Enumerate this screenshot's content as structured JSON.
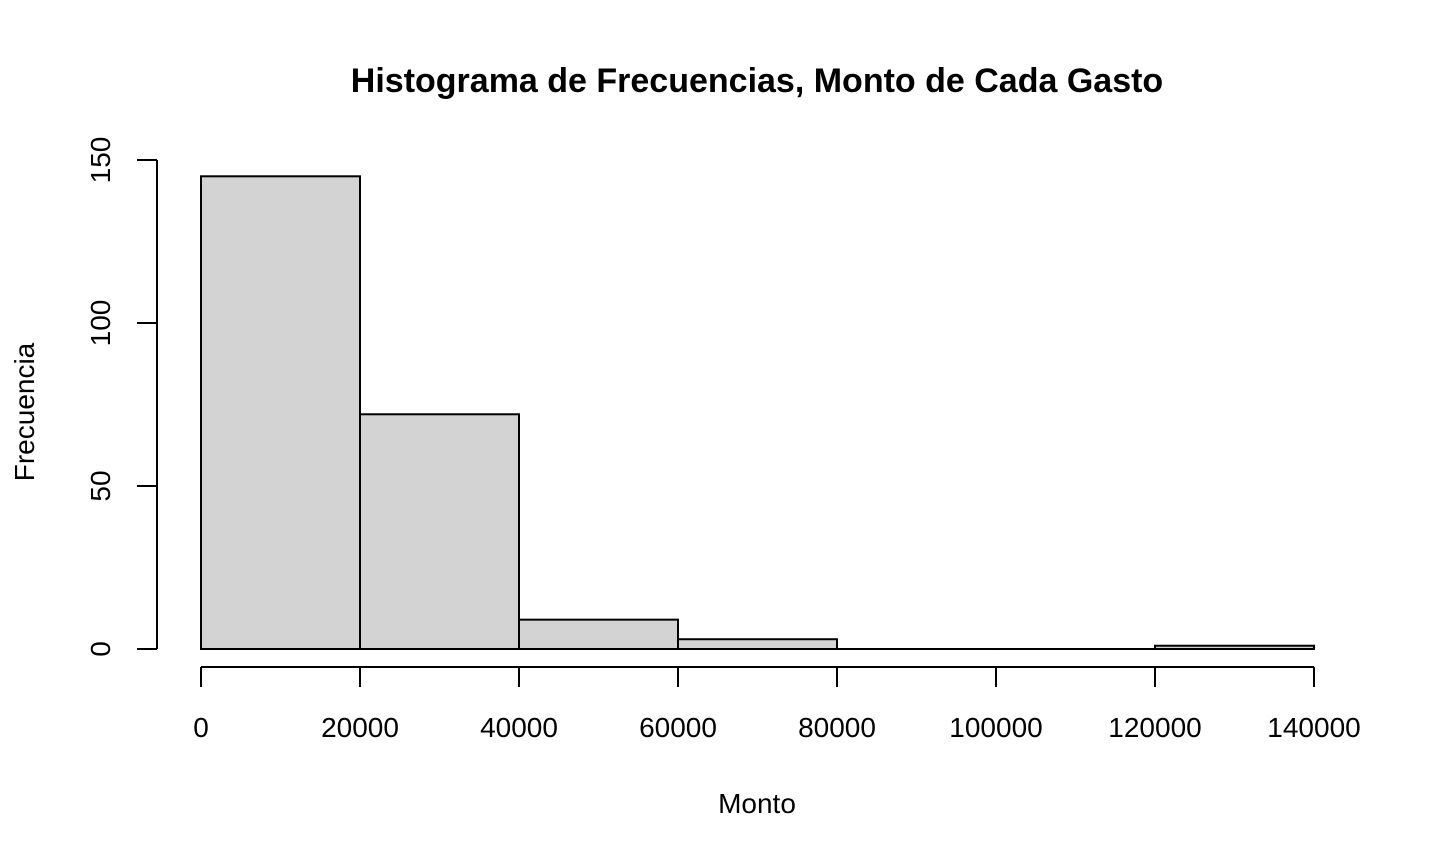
{
  "chart_data": {
    "type": "bar",
    "title": "Histograma de Frecuencias, Monto de Cada Gasto",
    "xlabel": "Monto",
    "ylabel": "Frecuencia",
    "bins": [
      {
        "from": 0,
        "to": 20000,
        "count": 145
      },
      {
        "from": 20000,
        "to": 40000,
        "count": 72
      },
      {
        "from": 40000,
        "to": 60000,
        "count": 9
      },
      {
        "from": 60000,
        "to": 80000,
        "count": 3
      },
      {
        "from": 80000,
        "to": 100000,
        "count": 0
      },
      {
        "from": 100000,
        "to": 120000,
        "count": 0
      },
      {
        "from": 120000,
        "to": 140000,
        "count": 1
      }
    ],
    "xlim": [
      0,
      140000
    ],
    "ylim": [
      0,
      150
    ],
    "x_ticks": [
      "0",
      "20000",
      "40000",
      "60000",
      "80000",
      "100000",
      "120000",
      "140000"
    ],
    "y_ticks": [
      "0",
      "50",
      "100",
      "150"
    ],
    "grid": false,
    "bar_color": "#d3d3d3",
    "edge_color": "#000000"
  }
}
